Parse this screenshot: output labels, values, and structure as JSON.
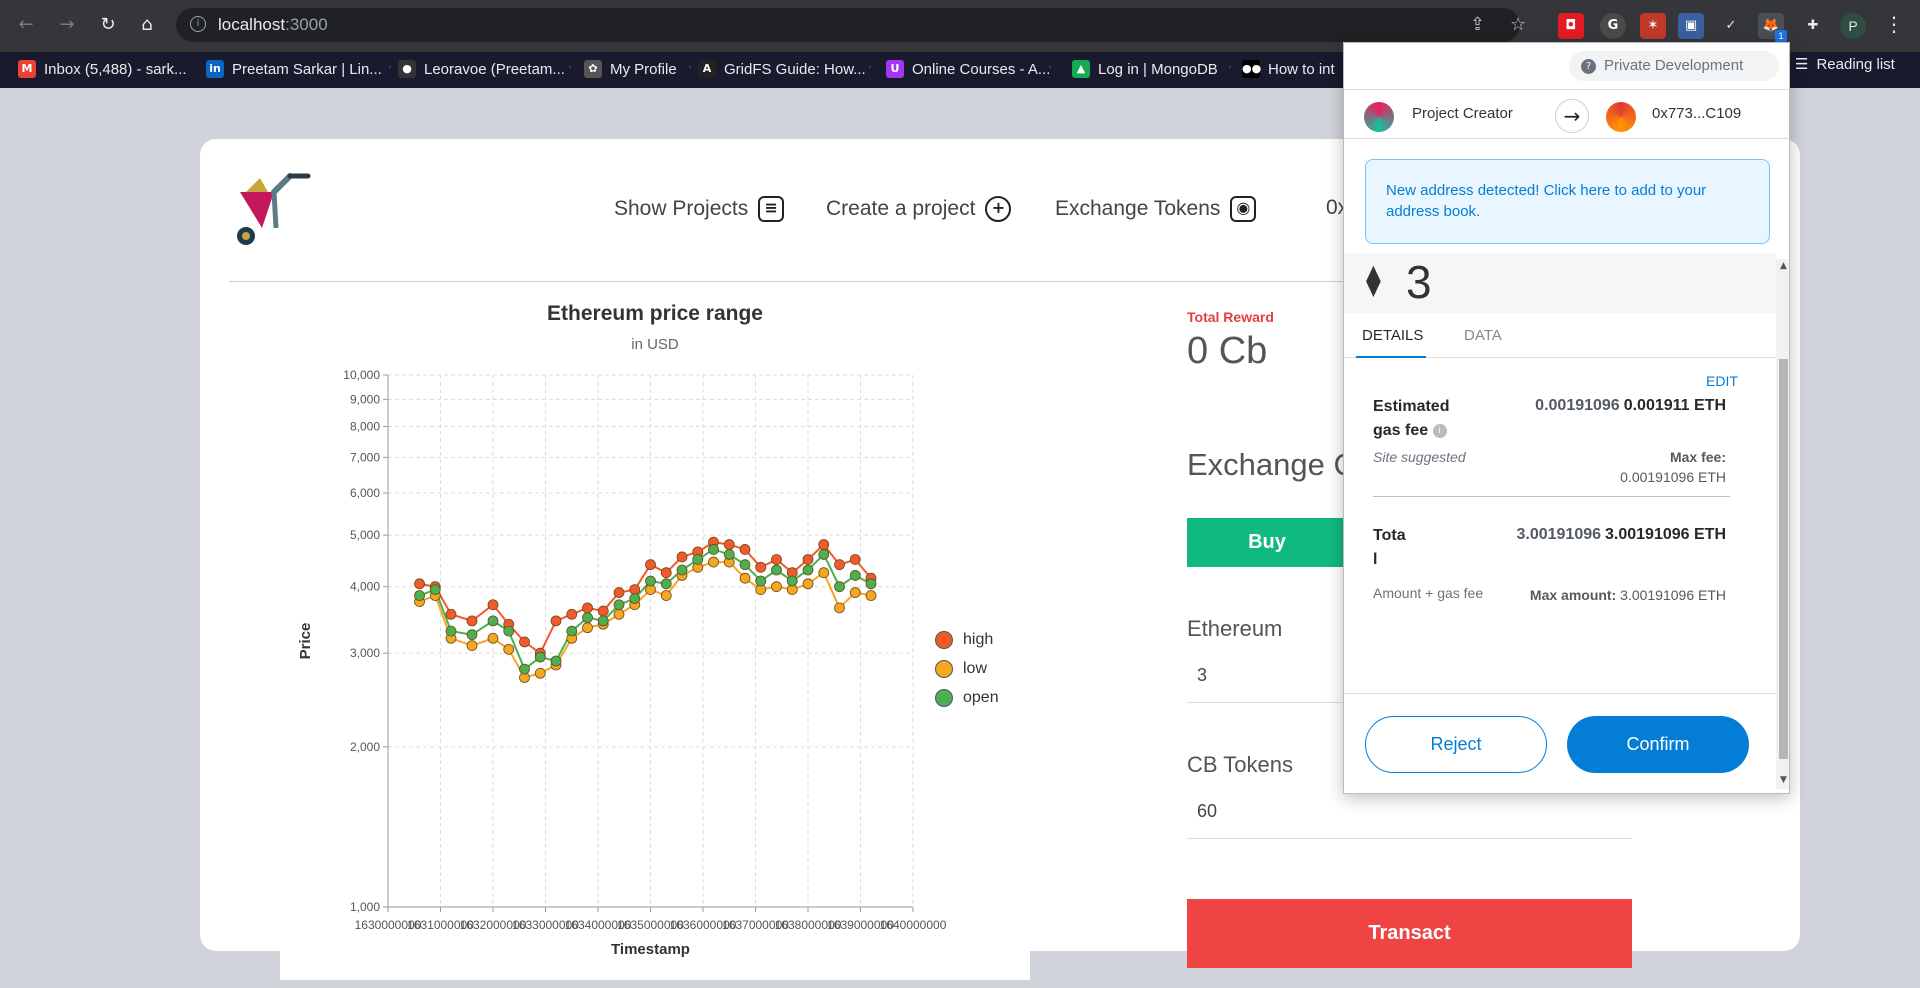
{
  "browser": {
    "url_host": "localhost",
    "url_port": ":3000",
    "reading_list": "Reading list",
    "profile_initial": "P",
    "ext_badge": "1"
  },
  "bookmarks": [
    {
      "label": "Inbox (5,488) - sark...",
      "icon": "gmail-icon",
      "color": "#ea4335",
      "glyph": "M"
    },
    {
      "label": "Preetam Sarkar | Lin...",
      "icon": "linkedin-icon",
      "color": "#0a66c2",
      "glyph": "in"
    },
    {
      "label": "Leoravoe (Preetam...",
      "icon": "github-icon",
      "color": "#333333",
      "glyph": "●"
    },
    {
      "label": "My Profile",
      "icon": "profile-icon",
      "color": "#555555",
      "glyph": "✿"
    },
    {
      "label": "GridFS Guide: How...",
      "icon": "gridfs-icon",
      "color": "#222222",
      "glyph": "A"
    },
    {
      "label": "Online Courses - A...",
      "icon": "udemy-icon",
      "color": "#a435f0",
      "glyph": "U"
    },
    {
      "label": "Log in | MongoDB",
      "icon": "mongodb-icon",
      "color": "#13aa52",
      "glyph": "▲"
    },
    {
      "label": "How to int",
      "icon": "medium-icon",
      "color": "#000000",
      "glyph": "●●"
    }
  ],
  "nav": {
    "show_projects": "Show Projects",
    "create_project": "Create a project",
    "exchange_tokens": "Exchange Tokens",
    "address_peek": "0x"
  },
  "chart_data": {
    "type": "line",
    "title": "Ethereum price range",
    "subtitle": "in USD",
    "xlabel": "Timestamp",
    "ylabel": "Price",
    "yscale": "log",
    "ylim": [
      1000,
      10000
    ],
    "y_ticks": [
      "1,000",
      "2,000",
      "3,000",
      "4,000",
      "5,000",
      "6,000",
      "7,000",
      "8,000",
      "9,000",
      "10,000"
    ],
    "y_tick_values": [
      1000,
      2000,
      3000,
      4000,
      5000,
      6000,
      7000,
      8000,
      9000,
      10000
    ],
    "xlim": [
      1630000000,
      1640000000
    ],
    "x_tick_labels": [
      "1630000000",
      "1631000000",
      "1632000000",
      "1633000000",
      "1634000000",
      "1635000000",
      "1636000000",
      "1637000000",
      "1638000000",
      "1639000000",
      "1640000000"
    ],
    "grid": true,
    "legend_position": "right",
    "x": [
      1630600000,
      1630900000,
      1631200000,
      1631600000,
      1632000000,
      1632300000,
      1632600000,
      1632900000,
      1633200000,
      1633500000,
      1633800000,
      1634100000,
      1634400000,
      1634700000,
      1635000000,
      1635300000,
      1635600000,
      1635900000,
      1636200000,
      1636500000,
      1636800000,
      1637100000,
      1637400000,
      1637700000,
      1638000000,
      1638300000,
      1638600000,
      1638900000,
      1639200000
    ],
    "series": [
      {
        "name": "high",
        "color": "#f15a2b",
        "values": [
          4050,
          4000,
          3550,
          3450,
          3700,
          3400,
          3150,
          3000,
          3450,
          3550,
          3650,
          3600,
          3900,
          3950,
          4400,
          4250,
          4550,
          4650,
          4850,
          4800,
          4700,
          4350,
          4500,
          4250,
          4500,
          4800,
          4400,
          4500,
          4150
        ]
      },
      {
        "name": "low",
        "color": "#f5a623",
        "values": [
          3750,
          3850,
          3200,
          3100,
          3200,
          3050,
          2700,
          2750,
          2850,
          3200,
          3350,
          3400,
          3550,
          3700,
          3950,
          3850,
          4200,
          4350,
          4450,
          4450,
          4150,
          3950,
          4000,
          3950,
          4050,
          4250,
          3650,
          3900,
          3850
        ]
      },
      {
        "name": "open",
        "color": "#4caf50",
        "values": [
          3850,
          3950,
          3300,
          3250,
          3450,
          3300,
          2800,
          2950,
          2900,
          3300,
          3500,
          3450,
          3700,
          3800,
          4100,
          4050,
          4300,
          4500,
          4700,
          4600,
          4400,
          4100,
          4300,
          4100,
          4300,
          4600,
          4000,
          4200,
          4050
        ]
      }
    ]
  },
  "exchange": {
    "reward_label": "Total Reward",
    "reward_value": "0 Cb",
    "title": "Exchange Cu",
    "buy": "Buy",
    "ethereum_label": "Ethereum",
    "ethereum_value": "3",
    "cb_label": "CB Tokens",
    "cb_value": "60",
    "transact": "Transact"
  },
  "metamask": {
    "network": "Private Development",
    "from_account": "Project Creator",
    "to_account": "0x773...C109",
    "alert": "New address detected! Click here to add to your address book.",
    "eth_glyph": "⧫",
    "amount": "3",
    "tab_details": "DETAILS",
    "tab_data": "DATA",
    "edit": "EDIT",
    "gas_label_1": "Estimated",
    "gas_label_2": "gas fee",
    "gas_fiat": "0.00191096",
    "gas_eth": "0.001911 ETH",
    "site_suggested": "Site suggested",
    "max_fee_label": "Max fee:",
    "max_fee_value": "0.00191096 ETH",
    "total_label_1": "Tota",
    "total_label_2": "l",
    "total_fiat": "3.00191096",
    "total_eth": "3.00191096 ETH",
    "amount_plus_gas": "Amount + gas fee",
    "max_amount_label": "Max amount:",
    "max_amount_value": "3.00191096 ETH",
    "reject": "Reject",
    "confirm": "Confirm"
  }
}
